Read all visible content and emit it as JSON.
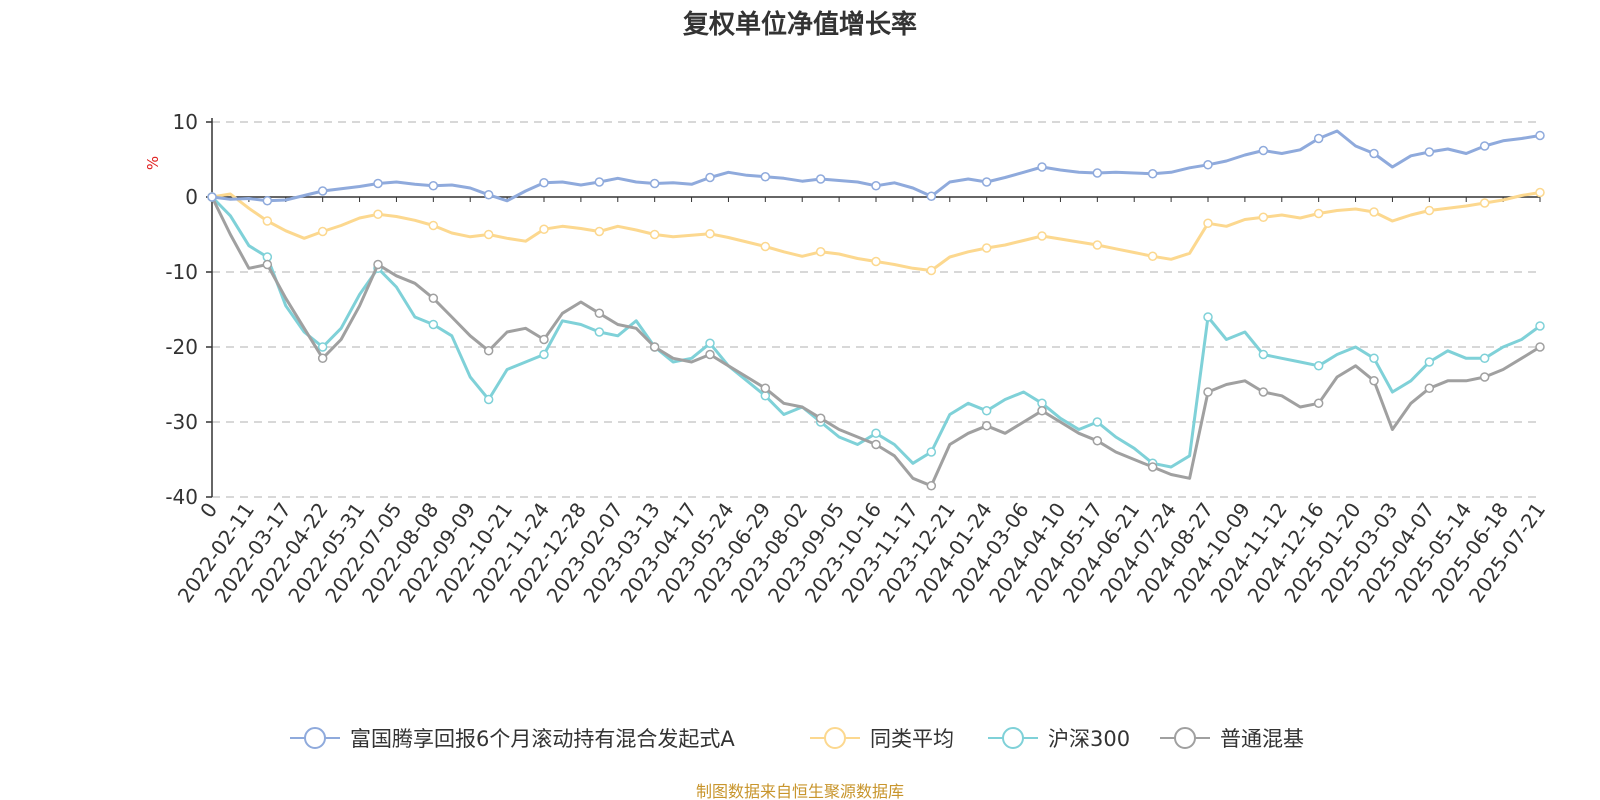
{
  "chart_data": {
    "type": "line",
    "title": "复权单位净值增长率",
    "ylabel": "%",
    "ylim": [
      -40,
      10
    ],
    "yticks": [
      10,
      0,
      -10,
      -20,
      -30,
      -40
    ],
    "grid": true,
    "legend_position": "bottom",
    "x_tick_labels": [
      "0",
      "2022-02-11",
      "2022-03-17",
      "2022-04-22",
      "2022-05-31",
      "2022-07-05",
      "2022-08-08",
      "2022-09-09",
      "2022-10-21",
      "2022-11-24",
      "2022-12-28",
      "2023-02-07",
      "2023-03-13",
      "2023-04-17",
      "2023-05-24",
      "2023-06-29",
      "2023-08-02",
      "2023-09-05",
      "2023-10-16",
      "2023-11-17",
      "2023-12-21",
      "2024-01-24",
      "2024-03-06",
      "2024-04-10",
      "2024-05-17",
      "2024-06-21",
      "2024-07-24",
      "2024-08-27",
      "2024-10-09",
      "2024-11-12",
      "2024-12-16",
      "2025-01-20",
      "2025-03-03",
      "2025-04-07",
      "2025-05-14",
      "2025-06-18",
      "2025-07-21"
    ],
    "series": [
      {
        "name": "富国腾享回报6个月滚动持有混合发起式A",
        "color": "#8faadc",
        "values": [
          0,
          -0.3,
          -0.2,
          -0.5,
          -0.4,
          0.2,
          0.8,
          1.1,
          1.4,
          1.8,
          2.0,
          1.7,
          1.5,
          1.6,
          1.2,
          0.3,
          -0.5,
          0.8,
          1.9,
          2.0,
          1.6,
          2.0,
          2.5,
          2.0,
          1.8,
          1.9,
          1.7,
          2.6,
          3.3,
          2.9,
          2.7,
          2.5,
          2.1,
          2.4,
          2.2,
          2.0,
          1.5,
          1.9,
          1.2,
          0.1,
          2.0,
          2.4,
          2.0,
          2.6,
          3.3,
          4.0,
          3.6,
          3.3,
          3.2,
          3.3,
          3.2,
          3.1,
          3.3,
          3.9,
          4.3,
          4.8,
          5.6,
          6.2,
          5.8,
          6.3,
          7.8,
          8.8,
          6.8,
          5.8,
          4.0,
          5.5,
          6.0,
          6.4,
          5.8,
          6.8,
          7.5,
          7.8,
          8.2
        ]
      },
      {
        "name": "同类平均",
        "color": "#fcd88f",
        "values": [
          0,
          0.4,
          -1.5,
          -3.2,
          -4.5,
          -5.5,
          -4.6,
          -3.8,
          -2.8,
          -2.3,
          -2.6,
          -3.1,
          -3.8,
          -4.8,
          -5.3,
          -5.0,
          -5.5,
          -5.9,
          -4.3,
          -3.9,
          -4.2,
          -4.6,
          -3.9,
          -4.4,
          -5.0,
          -5.3,
          -5.1,
          -4.9,
          -5.4,
          -6.0,
          -6.6,
          -7.3,
          -7.9,
          -7.3,
          -7.6,
          -8.2,
          -8.6,
          -9.0,
          -9.5,
          -9.8,
          -8.0,
          -7.3,
          -6.8,
          -6.4,
          -5.8,
          -5.2,
          -5.6,
          -6.0,
          -6.4,
          -6.9,
          -7.4,
          -7.9,
          -8.3,
          -7.5,
          -3.5,
          -3.9,
          -3.0,
          -2.7,
          -2.4,
          -2.8,
          -2.2,
          -1.8,
          -1.6,
          -2.0,
          -3.2,
          -2.4,
          -1.8,
          -1.5,
          -1.2,
          -0.8,
          -0.4,
          0.2,
          0.6
        ]
      },
      {
        "name": "沪深300",
        "color": "#7fd1d8",
        "values": [
          0,
          -2.5,
          -6.5,
          -8.0,
          -14.5,
          -18.0,
          -20.0,
          -17.5,
          -13.0,
          -9.5,
          -12.0,
          -16.0,
          -17.0,
          -18.5,
          -24.0,
          -27.0,
          -23.0,
          -22.0,
          -21.0,
          -16.5,
          -17.0,
          -18.0,
          -18.5,
          -16.5,
          -20.0,
          -22.0,
          -21.5,
          -19.5,
          -22.5,
          -24.5,
          -26.5,
          -29.0,
          -28.0,
          -30.0,
          -32.0,
          -33.0,
          -31.5,
          -33.0,
          -35.5,
          -34.0,
          -29.0,
          -27.5,
          -28.5,
          -27.0,
          -26.0,
          -27.5,
          -29.5,
          -31.0,
          -30.0,
          -32.0,
          -33.5,
          -35.5,
          -36.0,
          -34.5,
          -16.0,
          -19.0,
          -18.0,
          -21.0,
          -21.5,
          -22.0,
          -22.5,
          -21.0,
          -20.0,
          -21.5,
          -26.0,
          -24.5,
          -22.0,
          -20.5,
          -21.5,
          -21.5,
          -20.0,
          -19.0,
          -17.2
        ]
      },
      {
        "name": "普通混基",
        "color": "#a0a0a0",
        "values": [
          0,
          -5.0,
          -9.5,
          -9.0,
          -13.5,
          -17.5,
          -21.5,
          -19.0,
          -14.5,
          -9.0,
          -10.5,
          -11.5,
          -13.5,
          -16.0,
          -18.5,
          -20.5,
          -18.0,
          -17.5,
          -19.0,
          -15.5,
          -14.0,
          -15.5,
          -17.0,
          -17.5,
          -20.0,
          -21.5,
          -22.0,
          -21.0,
          -22.5,
          -24.0,
          -25.5,
          -27.5,
          -28.0,
          -29.5,
          -31.0,
          -32.0,
          -33.0,
          -34.5,
          -37.5,
          -38.5,
          -33.0,
          -31.5,
          -30.5,
          -31.5,
          -30.0,
          -28.5,
          -30.0,
          -31.5,
          -32.5,
          -34.0,
          -35.0,
          -36.0,
          -37.0,
          -37.5,
          -26.0,
          -25.0,
          -24.5,
          -26.0,
          -26.5,
          -28.0,
          -27.5,
          -24.0,
          -22.5,
          -24.5,
          -31.0,
          -27.5,
          -25.5,
          -24.5,
          -24.5,
          -24.0,
          -23.0,
          -21.5,
          -20.0
        ]
      }
    ]
  },
  "source_text": "制图数据来自恒生聚源数据库",
  "colors": {
    "accent_unit": "#e02020",
    "source": "#c8952c",
    "grid": "#cccccc",
    "axis": "#333333"
  }
}
